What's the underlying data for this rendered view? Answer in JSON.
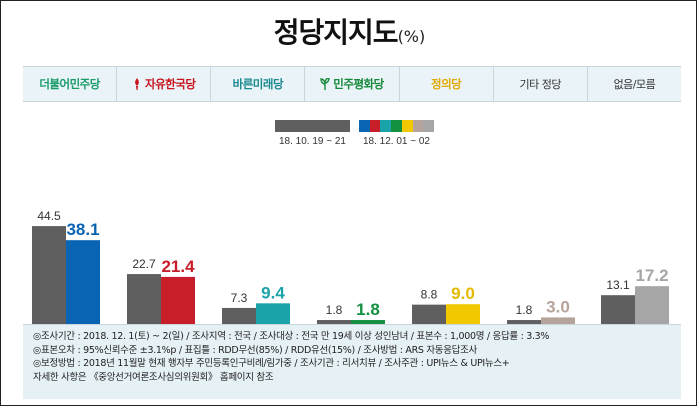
{
  "title": "정당지지도",
  "title_unit": "(%)",
  "parties": [
    {
      "label": "더불어민주당",
      "color": "#1a9c6a",
      "icon": "",
      "style": "logo"
    },
    {
      "label": "자유한국당",
      "color": "#c8141e",
      "icon": "torch-icon",
      "style": "logo"
    },
    {
      "label": "바른미래당",
      "color": "#1a8a8f",
      "icon": "",
      "style": "logo"
    },
    {
      "label": "민주평화당",
      "color": "#168a3a",
      "icon": "sprout-icon",
      "style": "logo"
    },
    {
      "label": "정의당",
      "color": "#e2aa00",
      "icon": "",
      "style": "logo"
    },
    {
      "label": "기타 정당",
      "color": "#333333",
      "icon": "",
      "style": "plain"
    },
    {
      "label": "없음/모름",
      "color": "#333333",
      "icon": "",
      "style": "plain"
    }
  ],
  "legend": [
    {
      "label": "18. 10. 19 ~ 21",
      "colors": [
        "#5f5f5f"
      ]
    },
    {
      "label": "18. 12. 01 ~ 02",
      "colors": [
        "#0a64b4",
        "#c81e2a",
        "#1aa3a8",
        "#139040",
        "#f2c800",
        "#b6a49c",
        "#a6a6a6"
      ]
    }
  ],
  "chart_data": {
    "type": "bar",
    "categories": [
      "더불어민주당",
      "자유한국당",
      "바른미래당",
      "민주평화당",
      "정의당",
      "기타 정당",
      "없음/모름"
    ],
    "series": [
      {
        "name": "18. 10. 19 ~ 21",
        "values": [
          44.5,
          22.7,
          7.3,
          1.8,
          8.8,
          1.8,
          13.1
        ],
        "color": "#5f5f5f"
      },
      {
        "name": "18. 12. 01 ~ 02",
        "values": [
          38.1,
          21.4,
          9.4,
          1.8,
          9.0,
          3.0,
          17.2
        ],
        "colors": [
          "#0a64b4",
          "#c81e2a",
          "#1aa3a8",
          "#139040",
          "#f2c800",
          "#b6a49c",
          "#a6a6a6"
        ]
      }
    ],
    "label_colors": [
      "#0a64b4",
      "#c81e2a",
      "#1aa3a8",
      "#139040",
      "#e6b800",
      "#b6a49c",
      "#a6a6a6"
    ],
    "value_labels": [
      [
        "44.5",
        "22.7",
        "7.3",
        "1.8",
        "8.8",
        "1.8",
        "13.1"
      ],
      [
        "38.1",
        "21.4",
        "9.4",
        "1.8",
        "9.0",
        "3.0",
        "17.2"
      ]
    ],
    "ylim": [
      0,
      50
    ],
    "grid": false
  },
  "footnotes": [
    "◎조사기간 : 2018. 12. 1(토) ~ 2(일) / 조사지역 : 전국 / 조사대상 : 전국 만 19세 이상 성인남녀 / 표본수 : 1,000명 / 응답률 : 3.3%",
    "◎표본오차 : 95%신뢰수준 ±3.1%p / 표집틀 : RDD무선(85%) / RDD유선(15%) / 조사방법 : ARS 자동응답조사",
    "◎보정방법 : 2018년 11월말 현재 행자부 주민등록인구비례/림가중 / 조사기관 : 리서치뷰 / 조사주관 : UPI뉴스 & UPI뉴스+",
    "자세한 사항은 《중앙선거여론조사심의위원회》 홈페이지 참조"
  ]
}
